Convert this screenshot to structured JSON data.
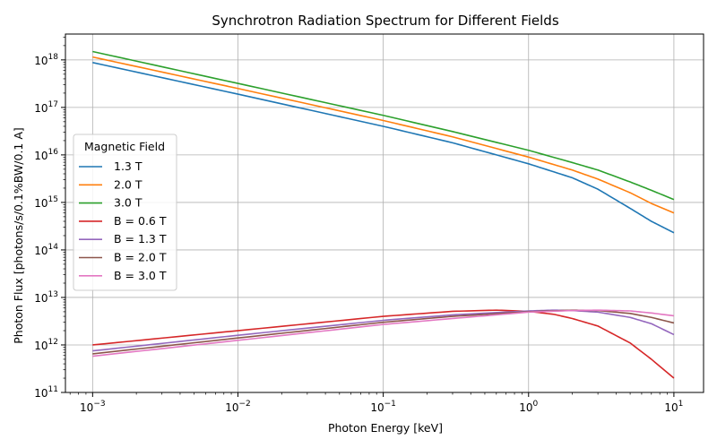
{
  "chart_data": {
    "type": "line",
    "title": "Synchrotron Radiation Spectrum for Different Fields",
    "xlabel": "Photon Energy [keV]",
    "ylabel": "Photon Flux [photons/s/0.1%BW/0.1 A]",
    "xscale": "log",
    "yscale": "log",
    "xlim": [
      0.00065,
      16
    ],
    "ylim": [
      100000000000.0,
      3.5e+18
    ],
    "x_ticks": [
      {
        "value": 0.001,
        "base": "10",
        "exp": "−3"
      },
      {
        "value": 0.01,
        "base": "10",
        "exp": "−2"
      },
      {
        "value": 0.1,
        "base": "10",
        "exp": "−1"
      },
      {
        "value": 1,
        "base": "10",
        "exp": "0"
      },
      {
        "value": 10,
        "base": "10",
        "exp": "1"
      }
    ],
    "y_ticks": [
      {
        "value": 100000000000.0,
        "base": "10",
        "exp": "11"
      },
      {
        "value": 1000000000000.0,
        "base": "10",
        "exp": "12"
      },
      {
        "value": 10000000000000.0,
        "base": "10",
        "exp": "13"
      },
      {
        "value": 100000000000000.0,
        "base": "10",
        "exp": "14"
      },
      {
        "value": 1000000000000000.0,
        "base": "10",
        "exp": "15"
      },
      {
        "value": 1e+16,
        "base": "10",
        "exp": "16"
      },
      {
        "value": 1e+17,
        "base": "10",
        "exp": "17"
      },
      {
        "value": 1e+18,
        "base": "10",
        "exp": "18"
      }
    ],
    "grid": true,
    "legend": {
      "title": "Magnetic Field",
      "placement": "center-left"
    },
    "series": [
      {
        "name": "1.3 T",
        "color": "#1f77b4",
        "x": [
          0.001,
          0.01,
          0.1,
          0.3,
          1,
          2,
          3,
          5,
          7,
          10
        ],
        "y": [
          8.8e+17,
          1.9e+17,
          4e+16,
          1.8e+16,
          6500000000000000.0,
          3300000000000000.0,
          1900000000000000.0,
          750000000000000.0,
          400000000000000.0,
          230000000000000.0
        ]
      },
      {
        "name": "2.0 T",
        "color": "#ff7f0e",
        "x": [
          0.001,
          0.01,
          0.1,
          0.3,
          1,
          2,
          3,
          5,
          7,
          10
        ],
        "y": [
          1.15e+18,
          2.5e+17,
          5.3e+16,
          2.4e+16,
          9000000000000000.0,
          4800000000000000.0,
          3100000000000000.0,
          1600000000000000.0,
          950000000000000.0,
          600000000000000.0
        ]
      },
      {
        "name": "3.0 T",
        "color": "#2ca02c",
        "x": [
          0.001,
          0.01,
          0.1,
          0.3,
          1,
          2,
          3,
          5,
          7,
          10
        ],
        "y": [
          1.5e+18,
          3.2e+17,
          6.8e+16,
          3.1e+16,
          1.25e+16,
          6900000000000000.0,
          4800000000000000.0,
          2700000000000000.0,
          1800000000000000.0,
          1150000000000000.0
        ]
      },
      {
        "name": "B = 0.6 T",
        "color": "#d62728",
        "x": [
          0.001,
          0.01,
          0.1,
          0.3,
          0.6,
          1,
          1.5,
          2,
          3,
          5,
          7,
          10
        ],
        "y": [
          1000000000000.0,
          2000000000000.0,
          4000000000000.0,
          5100000000000.0,
          5400000000000.0,
          5100000000000.0,
          4400000000000.0,
          3600000000000.0,
          2500000000000.0,
          1100000000000.0,
          500000000000.0,
          200000000000.0
        ]
      },
      {
        "name": "B = 1.3 T",
        "color": "#9467bd",
        "x": [
          0.001,
          0.01,
          0.1,
          0.3,
          1,
          1.5,
          2,
          3,
          5,
          7,
          10
        ],
        "y": [
          750000000000.0,
          1600000000000.0,
          3300000000000.0,
          4300000000000.0,
          5200000000000.0,
          5400000000000.0,
          5300000000000.0,
          4900000000000.0,
          3800000000000.0,
          2800000000000.0,
          1650000000000.0
        ]
      },
      {
        "name": "B = 2.0 T",
        "color": "#8c564b",
        "x": [
          0.001,
          0.01,
          0.1,
          0.3,
          1,
          2,
          3,
          5,
          7,
          10
        ],
        "y": [
          650000000000.0,
          1400000000000.0,
          3000000000000.0,
          4000000000000.0,
          5000000000000.0,
          5400000000000.0,
          5300000000000.0,
          4600000000000.0,
          3800000000000.0,
          2900000000000.0
        ]
      },
      {
        "name": "B = 3.0 T",
        "color": "#e377c2",
        "x": [
          0.001,
          0.01,
          0.1,
          0.3,
          1,
          2,
          3,
          5,
          7,
          10
        ],
        "y": [
          580000000000.0,
          1250000000000.0,
          2700000000000.0,
          3600000000000.0,
          4900000000000.0,
          5300000000000.0,
          5400000000000.0,
          5200000000000.0,
          4700000000000.0,
          4100000000000.0
        ]
      }
    ]
  }
}
